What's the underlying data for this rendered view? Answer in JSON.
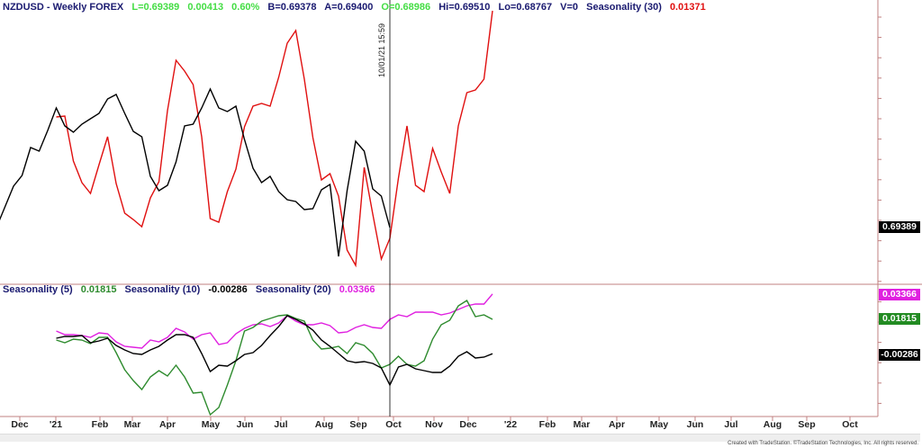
{
  "header": {
    "symbol": "NZDUSD - Weekly  FOREX",
    "last": "L=0.69389",
    "change": "0.00413",
    "change_pct": "0.60%",
    "bid": "B=0.69378",
    "ask": "A=0.69400",
    "open": "O=0.68986",
    "high": "Hi=0.69510",
    "low": "Lo=0.68767",
    "volume": "V=0",
    "seasonality30_label": "Seasonality (30)",
    "seasonality30_value": "0.01371"
  },
  "lower_header": {
    "s5_label": "Seasonality (5)",
    "s5_value": "0.01815",
    "s10_label": "Seasonality (10)",
    "s10_value": "-0.00286",
    "s20_label": "Seasonality (20)",
    "s20_value": "0.03366"
  },
  "axis_tags": {
    "price": "0.69389",
    "s20": "0.03366",
    "s5": "0.01815",
    "s10": "-0.00286"
  },
  "cursor_label": "10/01/21 15:59",
  "footer": "Created with TradeStation. ©TradeStation Technologies, Inc. All rights reserved.",
  "colors": {
    "price": "#000000",
    "seasonality30": "#e01010",
    "seasonality5": "#2e8b2e",
    "seasonality10": "#000000",
    "seasonality20": "#e020e0",
    "axis": "#c08080"
  },
  "chart_data": [
    {
      "type": "line",
      "pane": "upper",
      "frequency": "weekly",
      "x_axis_labels": [
        "Dec",
        "'21",
        "Feb",
        "Mar",
        "Apr",
        "May",
        "Jun",
        "Jul",
        "Aug",
        "Sep",
        "Oct",
        "Nov",
        "Dec",
        "'22",
        "Feb",
        "Mar",
        "Apr",
        "May",
        "Jun",
        "Jul",
        "Aug",
        "Sep",
        "Oct"
      ],
      "series": [
        {
          "name": "NZDUSD",
          "start": "2020-11-13",
          "values": [
            0.6939,
            0.7008,
            0.7077,
            0.7113,
            0.7206,
            0.7194,
            0.7263,
            0.7338,
            0.7278,
            0.7257,
            0.7284,
            0.7302,
            0.732,
            0.7368,
            0.7383,
            0.732,
            0.726,
            0.7242,
            0.711,
            0.7062,
            0.708,
            0.7158,
            0.7278,
            0.7284,
            0.7338,
            0.7401,
            0.7338,
            0.7326,
            0.7344,
            0.7233,
            0.7137,
            0.7089,
            0.711,
            0.7059,
            0.7032,
            0.7026,
            0.6999,
            0.7002,
            0.7065,
            0.7083,
            0.6843,
            0.7062,
            0.7227,
            0.7194,
            0.7068,
            0.7044,
            0.69389
          ]
        },
        {
          "name": "Seasonality (30)",
          "start": "2021-01-01",
          "values": [
            -0.00045,
            -0.00033,
            -0.00633,
            -0.00921,
            -0.01065,
            -0.00681,
            -0.00309,
            -0.00933,
            -0.01329,
            -0.01413,
            -0.01509,
            -0.01125,
            -0.00909,
            0.00039,
            0.00711,
            0.00567,
            0.00387,
            -0.00309,
            -0.01401,
            -0.01449,
            -0.01041,
            -0.00741,
            -0.00177,
            0.00099,
            0.00135,
            0.00099,
            0.00483,
            0.00939,
            0.01107,
            0.00459,
            -0.00321,
            -0.00885,
            -0.00801,
            -0.01101,
            -0.01821,
            -0.02025,
            -0.00717,
            -0.01341,
            -0.01941,
            -0.01665,
            -0.00861,
            -0.00165,
            -0.00957,
            -0.01041,
            -0.00465,
            -0.00777,
            -0.01065,
            -0.00165,
            0.00279,
            0.00315,
            0.00459,
            0.01371
          ]
        }
      ]
    },
    {
      "type": "line",
      "pane": "lower",
      "frequency": "weekly",
      "series": [
        {
          "name": "Seasonality (5)",
          "start": "2021-01-01",
          "values": [
            0.0055,
            0.00385,
            0.00605,
            0.0055,
            0.0033,
            0.00715,
            0.00715,
            -0.0022,
            -0.01265,
            -0.01925,
            -0.02475,
            -0.01705,
            -0.0132,
            -0.0165,
            -0.0099,
            -0.01705,
            -0.02695,
            -0.0264,
            -0.04015,
            -0.03575,
            -0.022,
            -0.00715,
            0.011,
            0.0132,
            0.01705,
            0.0187,
            0.02035,
            0.0209,
            0.0187,
            0.01705,
            0.0055,
            0.0,
            0.00055,
            0.00165,
            -0.00275,
            0.00385,
            0.0022,
            -0.00275,
            -0.01155,
            -0.00935,
            -0.0044,
            -0.00935,
            -0.01045,
            -0.00715,
            0.00605,
            0.01485,
            0.0176,
            0.0264,
            0.0297,
            0.0198,
            0.0209,
            0.01815
          ]
        },
        {
          "name": "Seasonality (10)",
          "start": "2021-01-01",
          "values": [
            0.0066,
            0.0077,
            0.0077,
            0.00825,
            0.00385,
            0.00495,
            0.0066,
            0.0022,
            -0.00055,
            -0.00275,
            -0.0033,
            -0.00055,
            0.00165,
            0.0055,
            0.0088,
            0.0088,
            0.00715,
            -0.00275,
            -0.01375,
            -0.0099,
            -0.01045,
            -0.00715,
            -0.0033,
            -0.0022,
            0.0022,
            0.00825,
            0.01375,
            0.0204,
            0.01815,
            0.0154,
            0.01155,
            0.0055,
            0.00165,
            -0.00275,
            -0.00715,
            -0.00825,
            -0.0077,
            -0.0088,
            -0.01155,
            -0.022,
            -0.011,
            -0.00935,
            -0.0121,
            -0.0132,
            -0.0143,
            -0.0143,
            -0.01045,
            -0.0044,
            -0.00165,
            -0.0055,
            -0.00495,
            -0.00286
          ]
        },
        {
          "name": "Seasonality (20)",
          "start": "2021-01-01",
          "values": [
            0.011,
            0.0088,
            0.0088,
            0.00825,
            0.00715,
            0.0099,
            0.00935,
            0.0044,
            0.00165,
            0.0011,
            0.00055,
            0.0055,
            0.0044,
            0.00715,
            0.01265,
            0.01045,
            0.00605,
            0.0088,
            0.0099,
            0.00275,
            0.00385,
            0.00935,
            0.01265,
            0.01485,
            0.0154,
            0.01375,
            0.01595,
            0.0204,
            0.01705,
            0.01485,
            0.01485,
            0.01595,
            0.0143,
            0.0099,
            0.01045,
            0.0132,
            0.01485,
            0.0132,
            0.01265,
            0.01815,
            0.0209,
            0.0198,
            0.02255,
            0.02255,
            0.02255,
            0.0209,
            0.022,
            0.0242,
            0.0264,
            0.0275,
            0.0275,
            0.03366
          ]
        }
      ]
    }
  ]
}
